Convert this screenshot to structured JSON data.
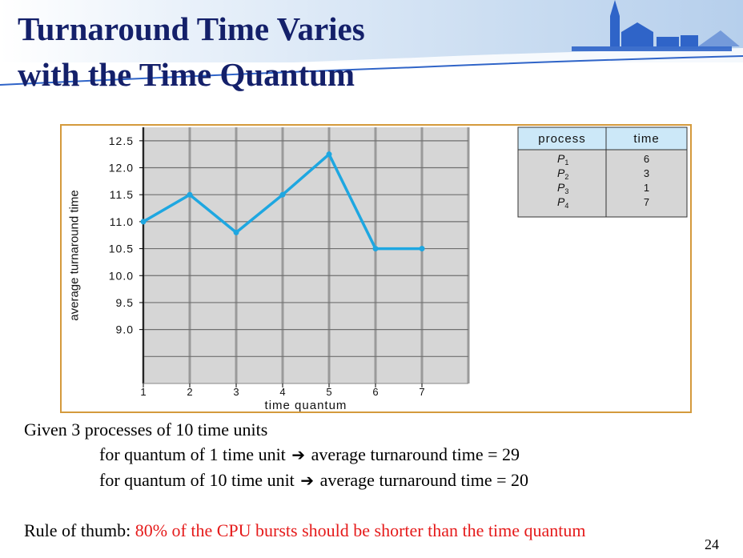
{
  "slide": {
    "title_line1": "Turnaround Time Varies",
    "title_line2": "with the Time Quantum",
    "page_number": "24"
  },
  "chart_data": {
    "type": "line",
    "xlabel": "time quantum",
    "ylabel": "average turnaround time",
    "x": [
      1,
      2,
      3,
      4,
      5,
      6,
      7
    ],
    "series": [
      {
        "values": [
          11.0,
          11.5,
          10.8,
          11.5,
          12.25,
          10.5,
          10.5
        ],
        "color": "#1ea7e1"
      }
    ],
    "x_ticks": [
      "1",
      "2",
      "3",
      "4",
      "5",
      "6",
      "7"
    ],
    "y_ticks": [
      "12.5",
      "12.0",
      "11.5",
      "11.0",
      "10.5",
      "10.0",
      "9.5",
      "9.0"
    ],
    "y_tick_values": [
      12.5,
      12.0,
      11.5,
      11.0,
      10.5,
      10.0,
      9.5,
      9.0
    ],
    "xlim": [
      1,
      7
    ],
    "ylim": [
      8.0,
      12.75
    ],
    "grid": true,
    "colors": {
      "line": "#1ea7e1",
      "plot_bg": "#d6d6d6",
      "grid": "#9a9a9a",
      "frame": "#d49a3c",
      "table_header": "#cce8f8"
    },
    "table": {
      "headers": [
        "process",
        "time"
      ],
      "rows": [
        {
          "process": "P",
          "sub": "1",
          "time": "6"
        },
        {
          "process": "P",
          "sub": "2",
          "time": "3"
        },
        {
          "process": "P",
          "sub": "3",
          "time": "1"
        },
        {
          "process": "P",
          "sub": "4",
          "time": "7"
        }
      ]
    }
  },
  "text": {
    "given": "Given 3 processes of 10 time units",
    "q1_left": "for quantum of 1 time unit",
    "q1_right": "average turnaround time = 29",
    "q10_left": "for quantum of 10 time unit",
    "q10_right": "average turnaround time = 20",
    "arrow": "➔",
    "rule_label": "Rule of thumb: ",
    "rule_text": "80% of the CPU bursts should be shorter than the time quantum"
  }
}
